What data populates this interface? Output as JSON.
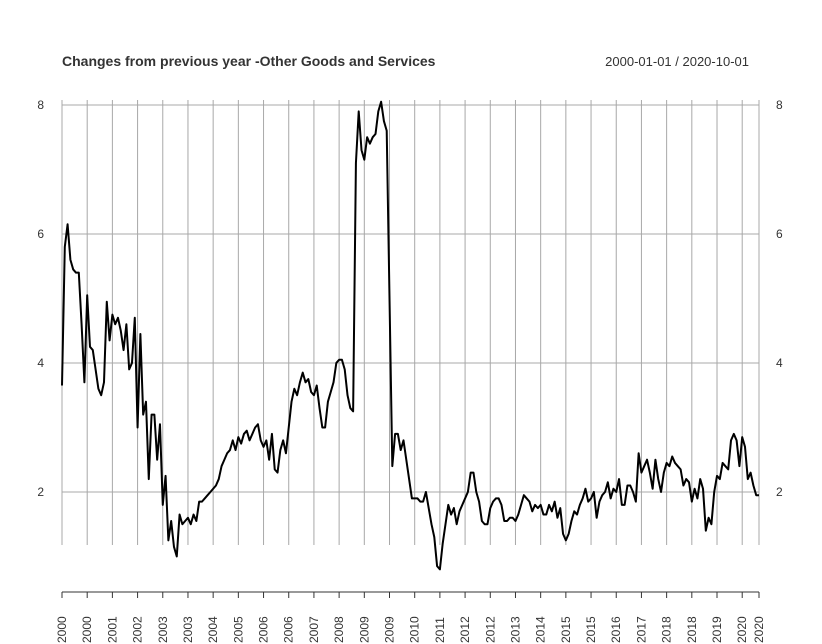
{
  "chart_data": {
    "type": "line",
    "title": "Changes from previous year -Other Goods and Services",
    "subtitle": "2000-01-01 / 2020-10-01",
    "x": [
      "2000-01",
      "2000-02",
      "2000-03",
      "2000-04",
      "2000-05",
      "2000-06",
      "2000-07",
      "2000-08",
      "2000-09",
      "2000-10",
      "2000-11",
      "2000-12",
      "2001-01",
      "2001-02",
      "2001-03",
      "2001-04",
      "2001-05",
      "2001-06",
      "2001-07",
      "2001-08",
      "2001-09",
      "2001-10",
      "2001-11",
      "2001-12",
      "2002-01",
      "2002-02",
      "2002-03",
      "2002-04",
      "2002-05",
      "2002-06",
      "2002-07",
      "2002-08",
      "2002-09",
      "2002-10",
      "2002-11",
      "2002-12",
      "2003-01",
      "2003-02",
      "2003-03",
      "2003-04",
      "2003-05",
      "2003-06",
      "2003-07",
      "2003-08",
      "2003-09",
      "2003-10",
      "2003-11",
      "2003-12",
      "2004-01",
      "2004-02",
      "2004-03",
      "2004-04",
      "2004-05",
      "2004-06",
      "2004-07",
      "2004-08",
      "2004-09",
      "2004-10",
      "2004-11",
      "2004-12",
      "2005-01",
      "2005-02",
      "2005-03",
      "2005-04",
      "2005-05",
      "2005-06",
      "2005-07",
      "2005-08",
      "2005-09",
      "2005-10",
      "2005-11",
      "2005-12",
      "2006-01",
      "2006-02",
      "2006-03",
      "2006-04",
      "2006-05",
      "2006-06",
      "2006-07",
      "2006-08",
      "2006-09",
      "2006-10",
      "2006-11",
      "2006-12",
      "2007-01",
      "2007-02",
      "2007-03",
      "2007-04",
      "2007-05",
      "2007-06",
      "2007-07",
      "2007-08",
      "2007-09",
      "2007-10",
      "2007-11",
      "2007-12",
      "2008-01",
      "2008-02",
      "2008-03",
      "2008-04",
      "2008-05",
      "2008-06",
      "2008-07",
      "2008-08",
      "2008-09",
      "2008-10",
      "2008-11",
      "2008-12",
      "2009-01",
      "2009-02",
      "2009-03",
      "2009-04",
      "2009-05",
      "2009-06",
      "2009-07",
      "2009-08",
      "2009-09",
      "2009-10",
      "2009-11",
      "2009-12",
      "2010-01",
      "2010-02",
      "2010-03",
      "2010-04",
      "2010-05",
      "2010-06",
      "2010-07",
      "2010-08",
      "2010-09",
      "2010-10",
      "2010-11",
      "2010-12",
      "2011-01",
      "2011-02",
      "2011-03",
      "2011-04",
      "2011-05",
      "2011-06",
      "2011-07",
      "2011-08",
      "2011-09",
      "2011-10",
      "2011-11",
      "2011-12",
      "2012-01",
      "2012-02",
      "2012-03",
      "2012-04",
      "2012-05",
      "2012-06",
      "2012-07",
      "2012-08",
      "2012-09",
      "2012-10",
      "2012-11",
      "2012-12",
      "2013-01",
      "2013-02",
      "2013-03",
      "2013-04",
      "2013-05",
      "2013-06",
      "2013-07",
      "2013-08",
      "2013-09",
      "2013-10",
      "2013-11",
      "2013-12",
      "2014-01",
      "2014-02",
      "2014-03",
      "2014-04",
      "2014-05",
      "2014-06",
      "2014-07",
      "2014-08",
      "2014-09",
      "2014-10",
      "2014-11",
      "2014-12",
      "2015-01",
      "2015-02",
      "2015-03",
      "2015-04",
      "2015-05",
      "2015-06",
      "2015-07",
      "2015-08",
      "2015-09",
      "2015-10",
      "2015-11",
      "2015-12",
      "2016-01",
      "2016-02",
      "2016-03",
      "2016-04",
      "2016-05",
      "2016-06",
      "2016-07",
      "2016-08",
      "2016-09",
      "2016-10",
      "2016-11",
      "2016-12",
      "2017-01",
      "2017-02",
      "2017-03",
      "2017-04",
      "2017-05",
      "2017-06",
      "2017-07",
      "2017-08",
      "2017-09",
      "2017-10",
      "2017-11",
      "2017-12",
      "2018-01",
      "2018-02",
      "2018-03",
      "2018-04",
      "2018-05",
      "2018-06",
      "2018-07",
      "2018-08",
      "2018-09",
      "2018-10",
      "2018-11",
      "2018-12",
      "2019-01",
      "2019-02",
      "2019-03",
      "2019-04",
      "2019-05",
      "2019-06",
      "2019-07",
      "2019-08",
      "2019-09",
      "2019-10",
      "2019-11",
      "2019-12",
      "2020-01",
      "2020-02",
      "2020-03",
      "2020-04",
      "2020-05",
      "2020-06",
      "2020-07",
      "2020-08",
      "2020-09",
      "2020-10"
    ],
    "series": [
      {
        "color": "#000000",
        "values": [
          3.65,
          5.8,
          6.15,
          5.6,
          5.45,
          5.4,
          5.4,
          4.6,
          3.7,
          5.05,
          4.25,
          4.2,
          3.9,
          3.6,
          3.5,
          3.7,
          4.95,
          4.35,
          4.75,
          4.6,
          4.7,
          4.5,
          4.2,
          4.6,
          3.9,
          4.0,
          4.7,
          3.0,
          4.45,
          3.2,
          3.4,
          2.2,
          3.2,
          3.2,
          2.5,
          3.05,
          1.8,
          2.25,
          1.25,
          1.55,
          1.15,
          1.0,
          1.65,
          1.5,
          1.55,
          1.6,
          1.5,
          1.65,
          1.55,
          1.85,
          1.85,
          1.9,
          1.95,
          2.0,
          2.05,
          2.1,
          2.2,
          2.4,
          2.5,
          2.6,
          2.65,
          2.8,
          2.65,
          2.85,
          2.75,
          2.9,
          2.95,
          2.8,
          2.9,
          3.0,
          3.05,
          2.8,
          2.7,
          2.8,
          2.5,
          2.9,
          2.35,
          2.3,
          2.65,
          2.8,
          2.6,
          3.0,
          3.4,
          3.6,
          3.5,
          3.7,
          3.85,
          3.7,
          3.75,
          3.55,
          3.5,
          3.65,
          3.3,
          3.0,
          3.0,
          3.4,
          3.55,
          3.7,
          4.0,
          4.05,
          4.05,
          3.9,
          3.5,
          3.3,
          3.25,
          7.1,
          7.9,
          7.3,
          7.15,
          7.5,
          7.4,
          7.5,
          7.55,
          7.9,
          8.05,
          7.75,
          7.6,
          5.0,
          2.4,
          2.9,
          2.9,
          2.65,
          2.8,
          2.5,
          2.2,
          1.9,
          1.9,
          1.9,
          1.85,
          1.85,
          2.0,
          1.75,
          1.5,
          1.3,
          0.85,
          0.8,
          1.2,
          1.5,
          1.8,
          1.65,
          1.75,
          1.5,
          1.7,
          1.8,
          1.9,
          2.0,
          2.3,
          2.3,
          2.0,
          1.85,
          1.55,
          1.5,
          1.5,
          1.75,
          1.85,
          1.9,
          1.9,
          1.8,
          1.55,
          1.55,
          1.6,
          1.6,
          1.55,
          1.65,
          1.8,
          1.95,
          1.9,
          1.85,
          1.7,
          1.8,
          1.75,
          1.8,
          1.65,
          1.65,
          1.8,
          1.7,
          1.85,
          1.6,
          1.75,
          1.35,
          1.25,
          1.35,
          1.55,
          1.7,
          1.65,
          1.8,
          1.9,
          2.05,
          1.85,
          1.9,
          2.0,
          1.6,
          1.85,
          1.95,
          2.0,
          2.15,
          1.9,
          2.05,
          2.0,
          2.2,
          1.8,
          1.8,
          2.1,
          2.1,
          2.0,
          1.85,
          2.6,
          2.3,
          2.4,
          2.5,
          2.3,
          2.05,
          2.5,
          2.2,
          2.0,
          2.3,
          2.45,
          2.4,
          2.55,
          2.45,
          2.4,
          2.35,
          2.1,
          2.2,
          2.15,
          1.85,
          2.05,
          1.9,
          2.2,
          2.05,
          1.4,
          1.6,
          1.5,
          2.0,
          2.25,
          2.2,
          2.45,
          2.4,
          2.35,
          2.8,
          2.9,
          2.8,
          2.4,
          2.85,
          2.7,
          2.2,
          2.3,
          2.1,
          1.95,
          1.95
        ]
      }
    ],
    "ylim": [
      0.75,
      8.1
    ],
    "yticks": [
      2,
      4,
      6,
      8
    ],
    "xticks": [
      {
        "value": "2000-01",
        "label": "2000"
      },
      {
        "value": "2000-10",
        "label": "2000"
      },
      {
        "value": "2001-07",
        "label": "2001"
      },
      {
        "value": "2002-04",
        "label": "2002"
      },
      {
        "value": "2003-01",
        "label": "2003"
      },
      {
        "value": "2003-10",
        "label": "2003"
      },
      {
        "value": "2004-07",
        "label": "2004"
      },
      {
        "value": "2005-04",
        "label": "2005"
      },
      {
        "value": "2006-01",
        "label": "2006"
      },
      {
        "value": "2006-10",
        "label": "2006"
      },
      {
        "value": "2007-07",
        "label": "2007"
      },
      {
        "value": "2008-04",
        "label": "2008"
      },
      {
        "value": "2009-01",
        "label": "2009"
      },
      {
        "value": "2009-10",
        "label": "2009"
      },
      {
        "value": "2010-07",
        "label": "2010"
      },
      {
        "value": "2011-04",
        "label": "2011"
      },
      {
        "value": "2012-01",
        "label": "2012"
      },
      {
        "value": "2012-10",
        "label": "2012"
      },
      {
        "value": "2013-07",
        "label": "2013"
      },
      {
        "value": "2014-04",
        "label": "2014"
      },
      {
        "value": "2015-01",
        "label": "2015"
      },
      {
        "value": "2015-10",
        "label": "2015"
      },
      {
        "value": "2016-07",
        "label": "2016"
      },
      {
        "value": "2017-04",
        "label": "2017"
      },
      {
        "value": "2018-01",
        "label": "2018"
      },
      {
        "value": "2018-10",
        "label": "2018"
      },
      {
        "value": "2019-07",
        "label": "2019"
      },
      {
        "value": "2020-04",
        "label": "2020"
      },
      {
        "value": "2020-10",
        "label": "2020"
      }
    ],
    "grid": true
  }
}
